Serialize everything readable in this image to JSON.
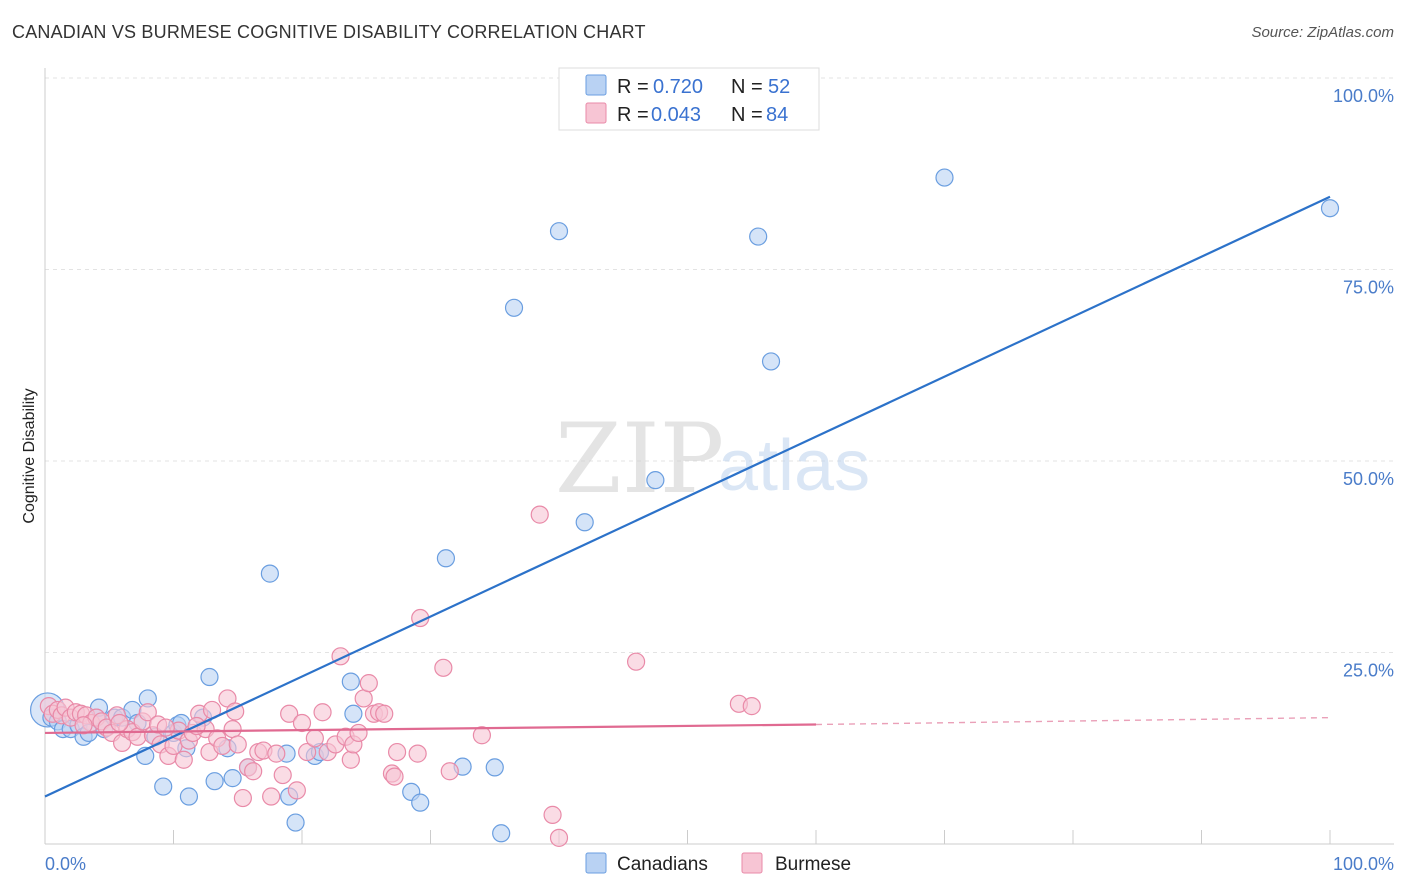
{
  "chart_data": {
    "type": "scatter",
    "title": "CANADIAN VS BURMESE COGNITIVE DISABILITY CORRELATION CHART",
    "source": "Source: ZipAtlas.com",
    "xlabel": "",
    "ylabel": "Cognitive Disability",
    "xlim": [
      0,
      100
    ],
    "ylim": [
      0,
      100
    ],
    "x_tick_labels": [
      "0.0%",
      "100.0%"
    ],
    "y_ticks": [
      25,
      50,
      75,
      100
    ],
    "y_tick_labels": [
      "25.0%",
      "50.0%",
      "75.0%",
      "100.0%"
    ],
    "grid": true,
    "watermark": {
      "part1": "ZIP",
      "part2": "atlas"
    },
    "legend": {
      "r_label": "R = ",
      "n_label": "N = ",
      "entries": [
        {
          "r": "0.720",
          "n": "52"
        },
        {
          "r": "0.043",
          "n": "84"
        }
      ]
    },
    "series": [
      {
        "name": "Canadians",
        "color": "#6a9ee0",
        "fill": "#b9d2f3",
        "line_color": "#2c72c9",
        "trend": {
          "x0": 0,
          "y0": 6.2,
          "x1": 100,
          "y1": 84.5
        },
        "points": [
          [
            0.2,
            17.5
          ],
          [
            0.5,
            16.5
          ],
          [
            1.0,
            16.0
          ],
          [
            1.4,
            15.0
          ],
          [
            2.0,
            15.0
          ],
          [
            2.6,
            15.5
          ],
          [
            3.0,
            14.0
          ],
          [
            3.4,
            14.5
          ],
          [
            4.0,
            16.5
          ],
          [
            4.2,
            17.8
          ],
          [
            4.6,
            15.0
          ],
          [
            5.4,
            16.5
          ],
          [
            6.0,
            16.5
          ],
          [
            6.8,
            17.5
          ],
          [
            7.2,
            15.8
          ],
          [
            7.8,
            11.5
          ],
          [
            8.0,
            19.0
          ],
          [
            8.6,
            14.0
          ],
          [
            9.2,
            7.5
          ],
          [
            10.0,
            14.5
          ],
          [
            10.3,
            15.5
          ],
          [
            10.6,
            15.8
          ],
          [
            11.0,
            12.5
          ],
          [
            11.2,
            6.2
          ],
          [
            12.3,
            16.5
          ],
          [
            12.8,
            21.8
          ],
          [
            13.2,
            8.2
          ],
          [
            14.2,
            12.5
          ],
          [
            14.6,
            8.6
          ],
          [
            15.8,
            10.0
          ],
          [
            17.5,
            35.3
          ],
          [
            18.8,
            11.8
          ],
          [
            19.0,
            6.2
          ],
          [
            19.5,
            2.8
          ],
          [
            21.0,
            11.5
          ],
          [
            21.4,
            12.0
          ],
          [
            23.8,
            21.2
          ],
          [
            24.0,
            17.0
          ],
          [
            28.5,
            6.8
          ],
          [
            29.2,
            5.4
          ],
          [
            31.2,
            37.3
          ],
          [
            32.5,
            10.1
          ],
          [
            35.0,
            10.0
          ],
          [
            35.5,
            1.4
          ],
          [
            36.5,
            70.0
          ],
          [
            40.0,
            80.0
          ],
          [
            42.0,
            42.0
          ],
          [
            47.5,
            47.5
          ],
          [
            55.5,
            79.3
          ],
          [
            56.5,
            63.0
          ],
          [
            70.0,
            87.0
          ],
          [
            100.0,
            83.0
          ]
        ]
      },
      {
        "name": "Burmese",
        "color": "#e98aa8",
        "fill": "#f7c5d4",
        "line_color": "#e06a91",
        "trend": {
          "x0": 0,
          "y0": 14.5,
          "x1": 60,
          "y1": 15.6
        },
        "trend_dashed": {
          "x0": 60,
          "y0": 15.6,
          "x1": 100,
          "y1": 16.5
        },
        "points": [
          [
            0.3,
            18.0
          ],
          [
            0.6,
            17.0
          ],
          [
            1.0,
            17.5
          ],
          [
            1.3,
            16.8
          ],
          [
            1.6,
            17.8
          ],
          [
            2.0,
            16.5
          ],
          [
            2.4,
            17.2
          ],
          [
            2.8,
            17.0
          ],
          [
            3.2,
            16.8
          ],
          [
            3.6,
            15.8
          ],
          [
            4.0,
            16.5
          ],
          [
            4.4,
            16.0
          ],
          [
            4.8,
            15.2
          ],
          [
            5.2,
            14.5
          ],
          [
            5.6,
            16.8
          ],
          [
            6.0,
            13.2
          ],
          [
            6.4,
            15.0
          ],
          [
            6.8,
            14.6
          ],
          [
            7.2,
            14.0
          ],
          [
            7.6,
            16.0
          ],
          [
            8.0,
            17.2
          ],
          [
            8.4,
            14.2
          ],
          [
            8.8,
            15.6
          ],
          [
            9.0,
            13.0
          ],
          [
            9.6,
            11.5
          ],
          [
            10.0,
            12.8
          ],
          [
            10.4,
            14.8
          ],
          [
            10.8,
            11.0
          ],
          [
            11.2,
            13.5
          ],
          [
            11.5,
            14.5
          ],
          [
            12.0,
            17.0
          ],
          [
            12.5,
            15.0
          ],
          [
            12.8,
            12.0
          ],
          [
            13.0,
            17.5
          ],
          [
            13.4,
            13.8
          ],
          [
            13.8,
            12.8
          ],
          [
            14.2,
            19.0
          ],
          [
            14.6,
            15.0
          ],
          [
            14.8,
            17.3
          ],
          [
            15.0,
            13.0
          ],
          [
            15.4,
            6.0
          ],
          [
            15.8,
            10.0
          ],
          [
            16.2,
            9.5
          ],
          [
            16.6,
            12.0
          ],
          [
            17.0,
            12.2
          ],
          [
            17.6,
            6.2
          ],
          [
            18.0,
            11.8
          ],
          [
            18.5,
            9.0
          ],
          [
            19.0,
            17.0
          ],
          [
            19.6,
            7.0
          ],
          [
            20.0,
            15.8
          ],
          [
            20.4,
            12.0
          ],
          [
            21.0,
            13.8
          ],
          [
            21.6,
            17.2
          ],
          [
            22.0,
            12.0
          ],
          [
            22.6,
            13.0
          ],
          [
            23.0,
            24.5
          ],
          [
            23.4,
            14.0
          ],
          [
            23.8,
            11.0
          ],
          [
            24.0,
            13.0
          ],
          [
            24.4,
            14.5
          ],
          [
            24.8,
            19.0
          ],
          [
            25.2,
            21.0
          ],
          [
            25.6,
            17.0
          ],
          [
            26.0,
            17.2
          ],
          [
            26.4,
            17.0
          ],
          [
            27.0,
            9.2
          ],
          [
            27.2,
            8.8
          ],
          [
            27.4,
            12.0
          ],
          [
            29.0,
            11.8
          ],
          [
            29.2,
            29.5
          ],
          [
            31.0,
            23.0
          ],
          [
            31.5,
            9.5
          ],
          [
            34.0,
            14.2
          ],
          [
            38.5,
            43.0
          ],
          [
            39.5,
            3.8
          ],
          [
            40.0,
            0.8
          ],
          [
            46.0,
            23.8
          ],
          [
            54.0,
            18.3
          ],
          [
            55.0,
            18.0
          ],
          [
            3.0,
            15.5
          ],
          [
            5.8,
            15.8
          ],
          [
            9.4,
            15.2
          ],
          [
            11.8,
            15.4
          ]
        ]
      }
    ]
  }
}
